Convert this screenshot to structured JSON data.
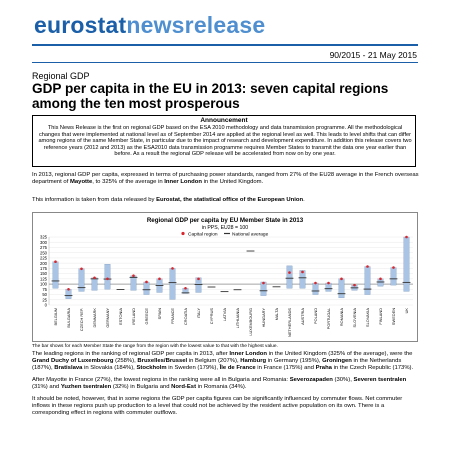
{
  "brand": {
    "part1": "eurostat",
    "part2": "newsrelease"
  },
  "issue": "90/2015  -  21 May 2015",
  "kicker": "Regional GDP",
  "headline": "GDP per capita in the EU in 2013: seven capital regions among the ten most prosperous",
  "announcement": {
    "title": "Announcement",
    "text": "This News Release is the first on regional GDP based on the ESA 2010 methodology and data transmission programme. All the methodological changes that were implemented at national level as of September 2014 are applied at the regional level as well. This leads to level shifts that can differ among regions of the same Member State, in particular due to the impact of research and development expenditure. In addition this release covers two reference years (2012 and 2013) as the ESA2010 data transmission programme requires Member States to transmit the data one year earlier than before. As a result the regional GDP release will be accelerated from now on by one year."
  },
  "p1": {
    "a": "In 2013, regional GDP per capita, expressed in terms of purchasing power standards, ranged from 27% of the EU28 average in the French overseas department of ",
    "b": "Mayotte",
    "c": ", to 325% of the average in ",
    "d": "Inner London",
    "e": " in the United Kingdom."
  },
  "p2": {
    "a": "This information is taken from data released by ",
    "b": "Eurostat, the statistical office of the European Union",
    "c": "."
  },
  "footnote": "The bar shows for each Member State the range from the region with the lowest value to that with the highest value.",
  "p3": {
    "a": "The leading regions in the ranking of regional GDP per capita in 2013, after ",
    "b": "Inner London",
    "c": " in the United Kingdom (325% of the average), were the ",
    "d": "Grand Duchy of Luxembourg",
    "e": " (258%), ",
    "f": "Bruxelles/Brussel",
    "g": " in Belgium (207%), ",
    "h": "Hamburg",
    "i": " in Germany (195%), ",
    "j": "Groningen",
    "k": " in the Netherlands (187%), ",
    "l": "Bratislava",
    "m": " in Slovakia (184%), ",
    "n": "Stockholm",
    "o": " in Sweden (179%), ",
    "p": "Île de France",
    "q": " in France (175%) and ",
    "r": "Praha",
    "s": " in the Czech Republic (173%)."
  },
  "p4": {
    "a": "After Mayotte in France (27%), the lowest regions in the ranking were all in Bulgaria and Romania: ",
    "b": "Severozapaden",
    "c": " (30%), ",
    "d": "Severen tsentralen",
    "e": " (31%) and ",
    "f": "Yuzhen tsentralen",
    "g": " (32%) in Bulgaria and ",
    "h": "Nord-Est",
    "i": " in Romania (34%)."
  },
  "p5": "It should be noted, however, that in some regions the GDP per capita figures can be significantly influenced by commuter flows. Net commuter inflows in these regions push up production to a level that could not be achieved by the resident active population on its own. There is a corresponding effect in regions with commuter outflows.",
  "chart_data": {
    "type": "range",
    "title": "Regional GDP per capita by EU Member State in 2013",
    "subtitle": "in PPS, EU28 = 100",
    "legend": [
      {
        "name": "Capital region",
        "color": "#d7262c"
      },
      {
        "name": "National average",
        "color": "#333333"
      }
    ],
    "ylim": [
      0,
      325
    ],
    "yticks": [
      0,
      25,
      50,
      75,
      100,
      125,
      150,
      175,
      200,
      225,
      250,
      275,
      300,
      325
    ],
    "reference_line": 100,
    "bar_color": "#a9c4e4",
    "categories": [
      "BELGIUM",
      "BULGARIA",
      "CZECH REP.",
      "DENMARK",
      "GERMANY",
      "ESTONIA",
      "IRELAND",
      "GREECE",
      "SPAIN",
      "FRANCE",
      "CROATIA",
      "ITALY",
      "CYPRUS",
      "LATVIA",
      "LITHUANIA",
      "LUXEMBOURG",
      "HUNGARY",
      "MALTA",
      "NETHERLANDS",
      "AUSTRIA",
      "POLAND",
      "PORTUGAL",
      "ROMANIA",
      "SLOVENIA",
      "SLOVAKIA",
      "FINLAND",
      "SWEDEN",
      "UK"
    ],
    "min": [
      80,
      30,
      65,
      70,
      75,
      null,
      70,
      50,
      60,
      27,
      55,
      60,
      null,
      null,
      null,
      null,
      45,
      null,
      80,
      80,
      50,
      65,
      34,
      70,
      50,
      90,
      95,
      65
    ],
    "max": [
      207,
      75,
      173,
      130,
      195,
      null,
      140,
      110,
      125,
      175,
      80,
      130,
      null,
      null,
      null,
      null,
      110,
      null,
      187,
      165,
      105,
      105,
      125,
      95,
      184,
      125,
      179,
      325
    ],
    "national": [
      115,
      45,
      83,
      125,
      124,
      74,
      132,
      73,
      93,
      107,
      58,
      98,
      86,
      64,
      73,
      258,
      68,
      87,
      128,
      130,
      67,
      78,
      54,
      82,
      76,
      110,
      125,
      108
    ],
    "capital": [
      207,
      75,
      173,
      130,
      125,
      null,
      140,
      110,
      125,
      175,
      80,
      125,
      null,
      null,
      null,
      null,
      105,
      null,
      155,
      158,
      105,
      105,
      125,
      95,
      184,
      125,
      179,
      325
    ]
  }
}
